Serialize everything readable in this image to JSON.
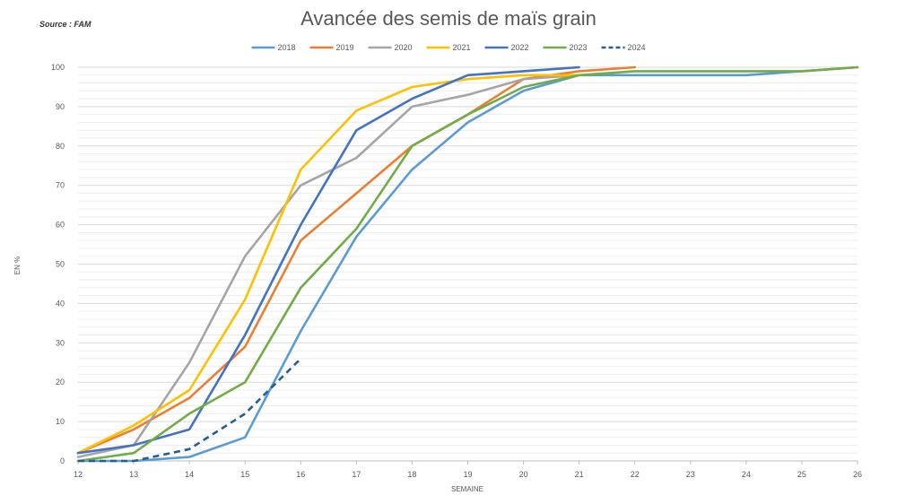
{
  "source_note": "Source : FAM",
  "chart_data": {
    "type": "line",
    "title": "Avancée des semis de maïs grain",
    "xlabel": "SEMAINE",
    "ylabel": "EN %",
    "x": [
      12,
      13,
      14,
      15,
      16,
      17,
      18,
      19,
      20,
      21,
      22,
      23,
      24,
      25,
      26
    ],
    "xlim": [
      12,
      26
    ],
    "ylim": [
      0,
      100
    ],
    "yticks": [
      0,
      10,
      20,
      30,
      40,
      50,
      60,
      70,
      80,
      90,
      100
    ],
    "grid": true,
    "legend_position": "top",
    "series": [
      {
        "name": "2018",
        "color": "#5b9bd5",
        "dashed": false,
        "x": [
          12,
          13,
          14,
          15,
          16,
          17,
          18,
          19,
          20,
          21,
          22,
          23,
          24,
          25,
          26
        ],
        "values": [
          0,
          0,
          1,
          6,
          33,
          57,
          74,
          86,
          94,
          98,
          98,
          98,
          98,
          99,
          100
        ]
      },
      {
        "name": "2019",
        "color": "#ed7d31",
        "dashed": false,
        "x": [
          12,
          13,
          14,
          15,
          16,
          17,
          18,
          19,
          20,
          21,
          22
        ],
        "values": [
          2,
          8,
          16,
          29,
          56,
          68,
          80,
          88,
          97,
          99,
          100
        ]
      },
      {
        "name": "2020",
        "color": "#a5a5a5",
        "dashed": false,
        "x": [
          12,
          13,
          14,
          15,
          16,
          17,
          18,
          19,
          20,
          21
        ],
        "values": [
          1,
          4,
          25,
          52,
          70,
          77,
          90,
          93,
          97,
          98
        ]
      },
      {
        "name": "2021",
        "color": "#ffc000",
        "dashed": false,
        "x": [
          12,
          13,
          14,
          15,
          16,
          17,
          18,
          19,
          20,
          21
        ],
        "values": [
          2,
          9,
          18,
          41,
          74,
          89,
          95,
          97,
          98,
          98
        ]
      },
      {
        "name": "2022",
        "color": "#4472c4",
        "dashed": false,
        "x": [
          12,
          13,
          14,
          15,
          16,
          17,
          18,
          19,
          20,
          21
        ],
        "values": [
          2,
          4,
          8,
          32,
          60,
          84,
          92,
          98,
          99,
          100
        ]
      },
      {
        "name": "2023",
        "color": "#70ad47",
        "dashed": false,
        "x": [
          12,
          13,
          14,
          15,
          16,
          17,
          18,
          19,
          20,
          21,
          22,
          23,
          24,
          25,
          26
        ],
        "values": [
          0,
          2,
          12,
          20,
          44,
          59,
          80,
          88,
          95,
          98,
          99,
          99,
          99,
          99,
          100
        ]
      },
      {
        "name": "2024",
        "color": "#255e91",
        "dashed": true,
        "x": [
          12,
          13,
          14,
          15,
          16
        ],
        "values": [
          0,
          0,
          3,
          12,
          26
        ]
      }
    ]
  }
}
